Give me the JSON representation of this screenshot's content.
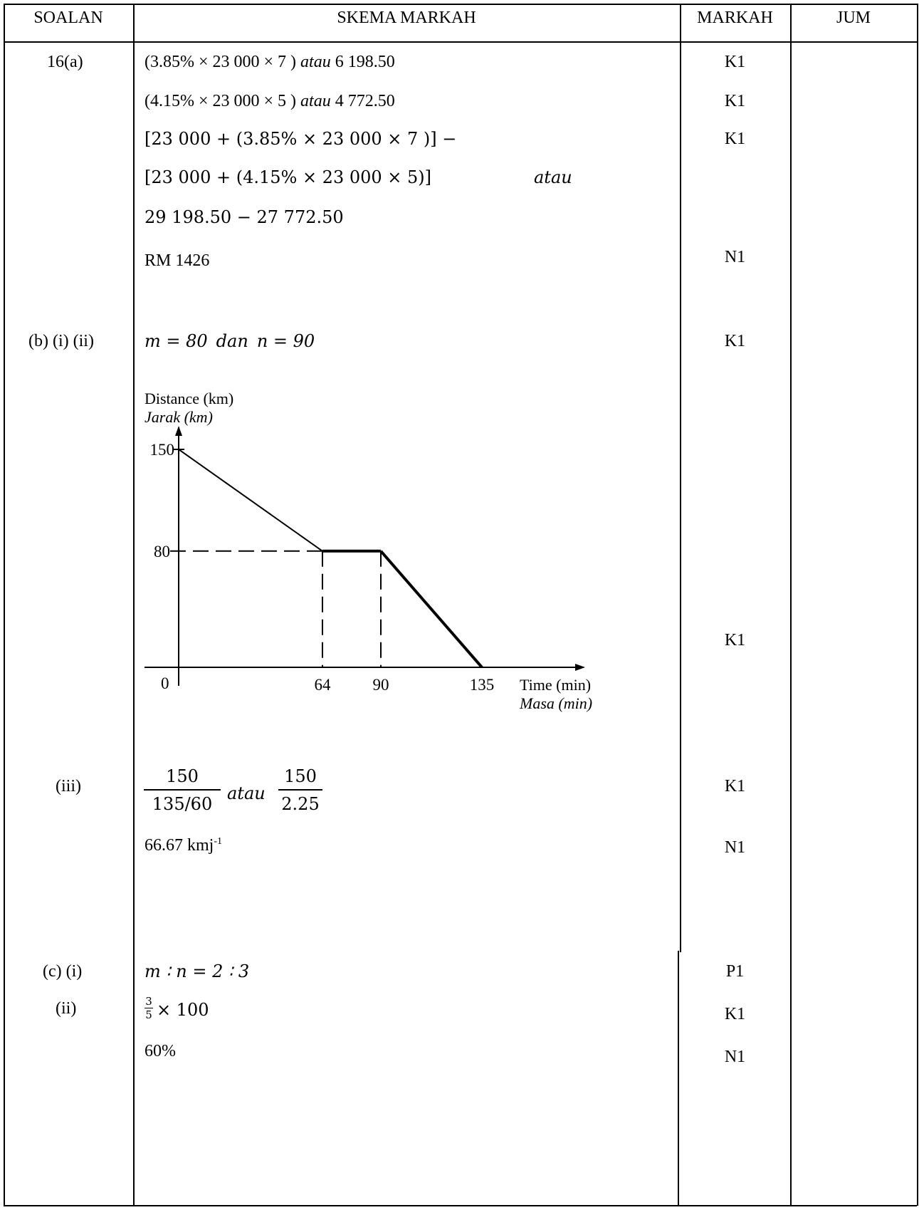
{
  "header": {
    "soalan": "SOALAN",
    "skema": "SKEMA MARKAH",
    "markah": "MARKAH",
    "jum": "JUM"
  },
  "q16a": {
    "label": "16(a)",
    "line1_expr": "(3.85% × 23 000 × 7 )",
    "line1_atau": "atau",
    "line1_val": "6 198.50",
    "line1_mark": "K1",
    "line2_expr": "(4.15% × 23 000 × 5 )",
    "line2_atau": "atau",
    "line2_val": "4 772.50",
    "line2_mark": "K1",
    "line3": "[23 000 +  (3.85% × 23 000 × 7 )] −",
    "line3_mark": "K1",
    "line4": "[23 000 + (4.15% × 23 000 × 5)]",
    "line4_atau": "atau",
    "line5": "29 198.50 − 27 772.50",
    "line6": "RM 1426",
    "line6_mark": "N1"
  },
  "q16b": {
    "label": "(b) (i) (ii)",
    "m_part": "m = 80",
    "dan": "dan",
    "n_part": "n = 90",
    "mark1": "K1",
    "graph_mark": "K1",
    "iii_label": "(iii)",
    "frac1_num": "150",
    "frac1_den": "135/60",
    "frac_atau": "atau",
    "frac2_num": "150",
    "frac2_den": "2.25",
    "iii_mark1": "K1",
    "speed": "66.67  kmj",
    "speed_sup": "-1",
    "iii_mark2": "N1"
  },
  "chart_data": {
    "type": "line",
    "title": "",
    "ylabel_en": "Distance (km)",
    "ylabel_ms": "Jarak (km)",
    "xlabel_en": "Time (min)",
    "xlabel_ms": "Masa (min)",
    "origin_label": "0",
    "x_ticks": [
      "64",
      "90",
      "135"
    ],
    "y_ticks": [
      "150",
      "80"
    ],
    "series": [
      {
        "x": [
          0,
          64,
          90,
          135
        ],
        "y": [
          150,
          80,
          80,
          0
        ]
      }
    ],
    "xlim": [
      0,
      135
    ],
    "ylim": [
      0,
      150
    ]
  },
  "q16c": {
    "label_i": "(c) (i)",
    "ratio": "m ∶ n = 2 ∶ 3",
    "mark_i": "P1",
    "label_ii": "(ii)",
    "frac_num": "3",
    "frac_den": "5",
    "times100": "× 100",
    "mark_ii1": "K1",
    "percent": "60%",
    "mark_ii2": "N1"
  }
}
